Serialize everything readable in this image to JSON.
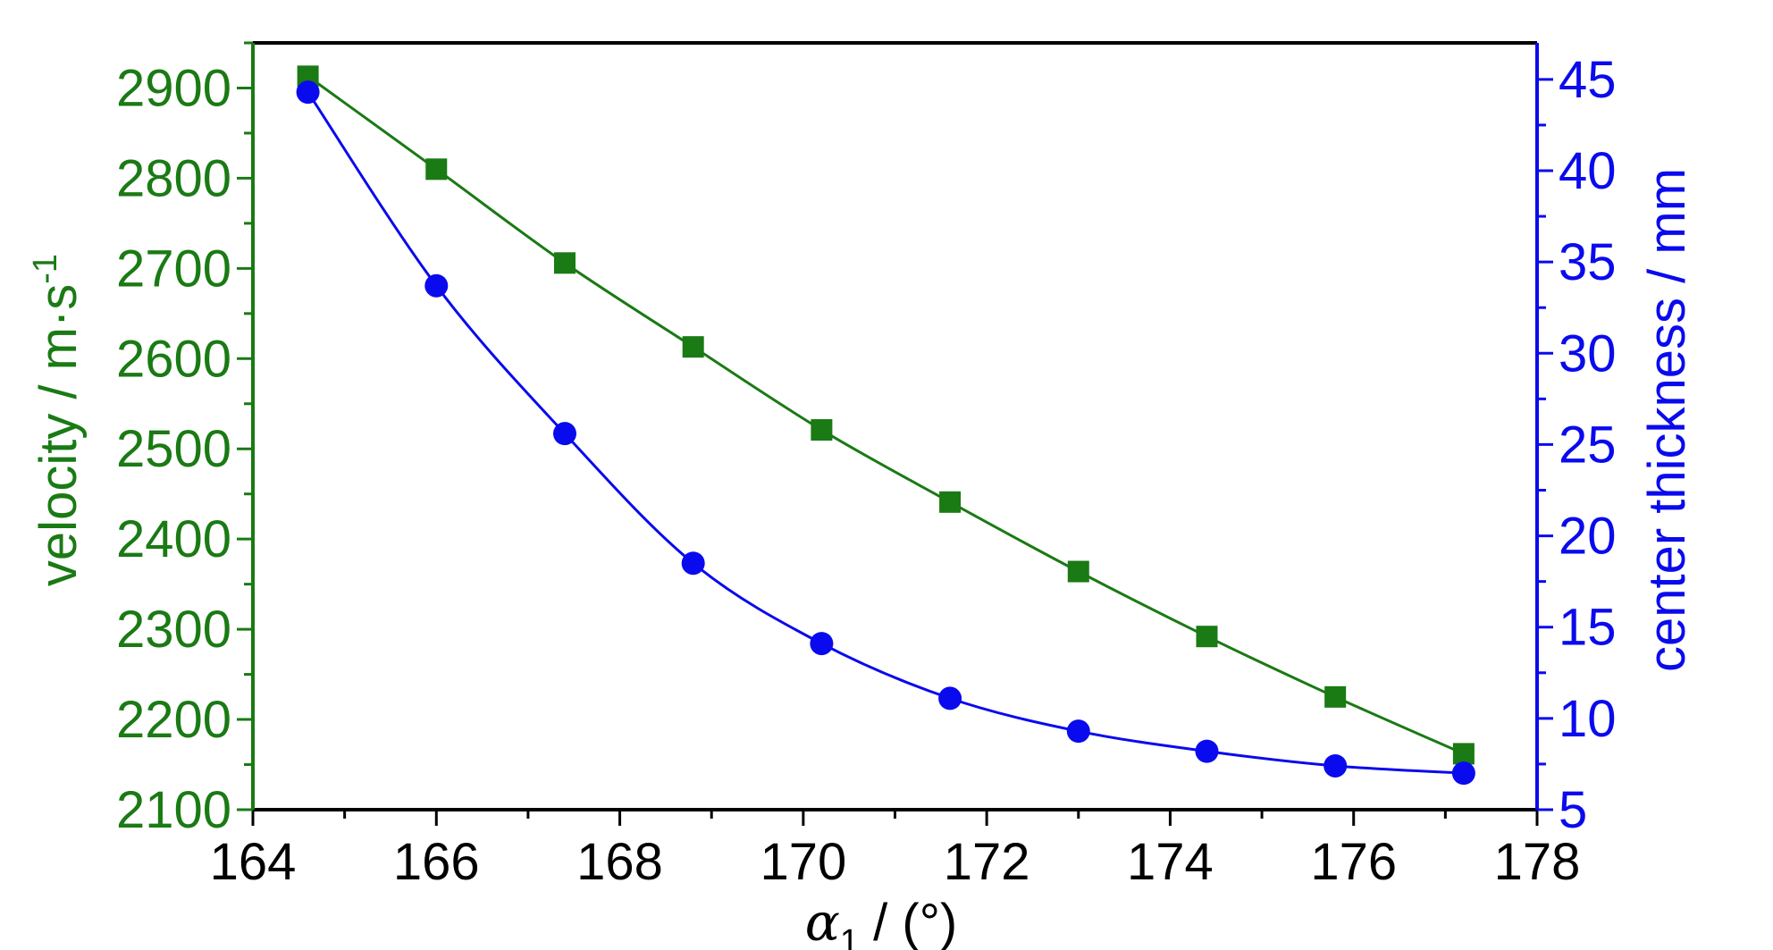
{
  "chart_data": {
    "type": "line",
    "xlabel": {
      "symbol": "α",
      "subscript": "1",
      "rest": " / (°)"
    },
    "ylabel_left": {
      "text": "velocity / m·s",
      "superscript": "-1"
    },
    "ylabel_right": "center thickness / mm",
    "xlim": [
      164,
      178
    ],
    "ylim_left": [
      2100,
      2950
    ],
    "ylim_right": [
      5,
      47
    ],
    "x_ticks": [
      164,
      166,
      168,
      170,
      172,
      174,
      176,
      178
    ],
    "y_left_ticks": [
      2100,
      2200,
      2300,
      2400,
      2500,
      2600,
      2700,
      2800,
      2900
    ],
    "y_right_ticks": [
      5,
      10,
      15,
      20,
      25,
      30,
      35,
      40,
      45
    ],
    "grid": false,
    "legend": "none",
    "series": [
      {
        "axis": "left",
        "marker": "square",
        "color": "#1a7a14",
        "x": [
          164.6,
          166.0,
          167.4,
          168.8,
          170.2,
          171.6,
          173.0,
          174.4,
          175.8,
          177.2
        ],
        "y": [
          2913,
          2810,
          2706,
          2613,
          2521,
          2441,
          2364,
          2292,
          2225,
          2162
        ]
      },
      {
        "axis": "right",
        "marker": "circle",
        "color": "#0a0aee",
        "x": [
          164.6,
          166.0,
          167.4,
          168.8,
          170.2,
          171.6,
          173.0,
          174.4,
          175.8,
          177.2
        ],
        "y": [
          44.3,
          33.7,
          25.6,
          18.5,
          14.1,
          11.1,
          9.3,
          8.2,
          7.4,
          7.0
        ]
      }
    ]
  }
}
